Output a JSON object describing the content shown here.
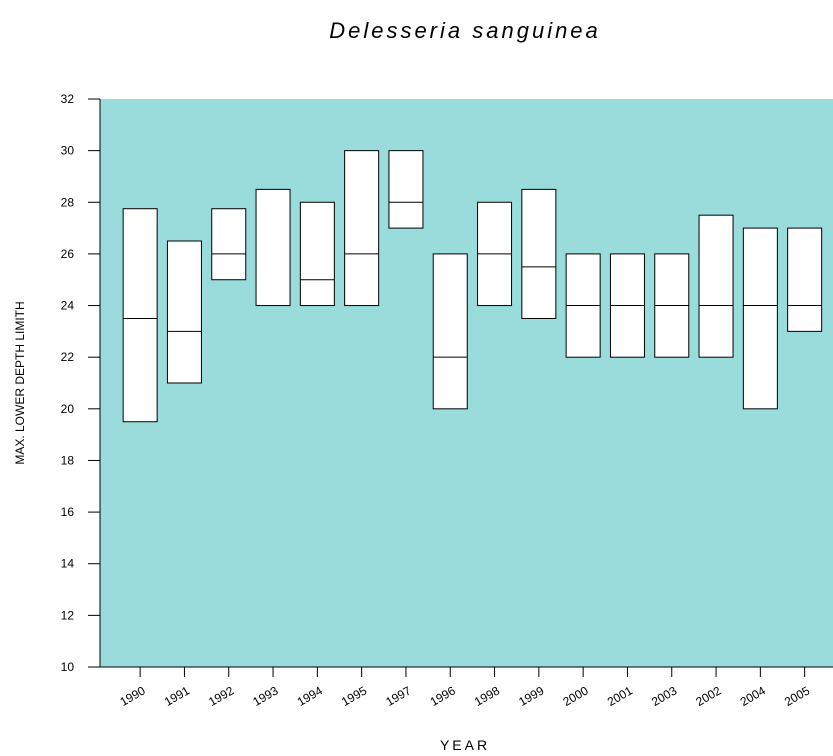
{
  "chart_data": {
    "type": "range-box",
    "title": "Delesseria sanguinea",
    "x_label": "YEAR",
    "y_label": "MAX. LOWER DEPTH LIMITH",
    "categories": [
      "1990",
      "1991",
      "1992",
      "1993",
      "1994",
      "1995",
      "1997",
      "1996",
      "1998",
      "1999",
      "2000",
      "2001",
      "2003",
      "2002",
      "2004",
      "2005"
    ],
    "high": [
      27.75,
      26.5,
      27.75,
      28.5,
      28,
      30,
      30,
      26,
      28,
      28.5,
      26,
      26,
      26,
      27.5,
      27,
      27
    ],
    "median": [
      23.5,
      23,
      26,
      null,
      25,
      26,
      28,
      22,
      26,
      25.5,
      24,
      24,
      24,
      24,
      24,
      24
    ],
    "low": [
      19.5,
      21,
      25,
      24,
      24,
      24,
      27,
      20,
      24,
      23.5,
      22,
      22,
      22,
      22,
      20,
      23
    ],
    "box_color": "#ffffff",
    "plot_background": "#9adcdc",
    "ylim": [
      10,
      32
    ],
    "yticks": [
      10,
      12,
      14,
      16,
      18,
      20,
      22,
      24,
      26,
      28,
      30,
      32
    ]
  }
}
